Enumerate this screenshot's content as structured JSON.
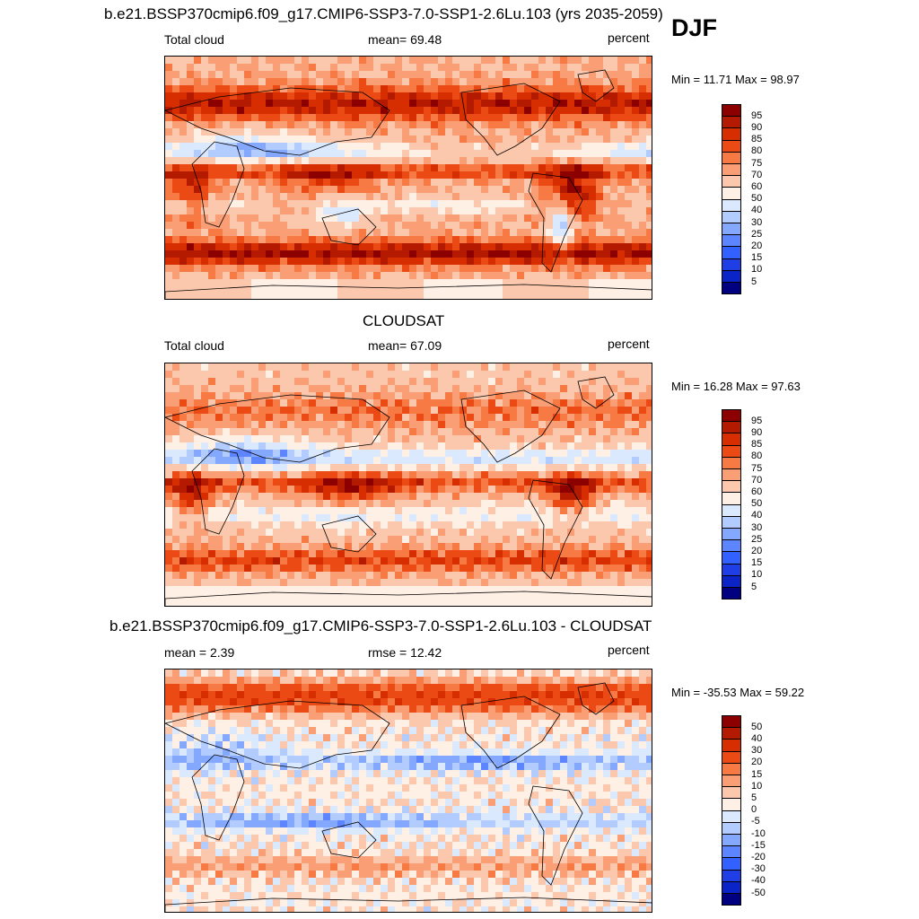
{
  "season": "DJF",
  "panels": [
    {
      "title": "b.e21.BSSP370cmip6.f09_g17.CMIP6-SSP3-7.0-SSP1-2.6Lu.103 (yrs 2035-2059)",
      "left_label": "Total cloud",
      "center_label": "mean=  69.48",
      "right_label": "percent",
      "minmax": "Min =  11.71 Max =  98.97",
      "field": "model"
    },
    {
      "title": "CLOUDSAT",
      "left_label": "Total cloud",
      "center_label": "mean=  67.09",
      "right_label": "percent",
      "minmax": "Min =  16.28 Max =  97.63",
      "field": "obs"
    },
    {
      "title": "b.e21.BSSP370cmip6.f09_g17.CMIP6-SSP3-7.0-SSP1-2.6Lu.103 - CLOUDSAT",
      "left_label": "mean =   2.39",
      "center_label": "rmse =  12.42",
      "right_label": "percent",
      "minmax": "Min = -35.53 Max =  59.22",
      "field": "diff"
    }
  ],
  "colorbars": {
    "abs": {
      "labels": [
        "95",
        "90",
        "85",
        "80",
        "75",
        "70",
        "60",
        "50",
        "40",
        "30",
        "25",
        "20",
        "15",
        "10",
        "5"
      ],
      "colors": [
        "#8c0000",
        "#b31a00",
        "#d62e00",
        "#eb4a14",
        "#f77a45",
        "#fa9e75",
        "#fcc8ad",
        "#fff0e6",
        "#dbe9ff",
        "#b3ccff",
        "#85a8ff",
        "#5c85ff",
        "#3361ff",
        "#1f3ee6",
        "#0a24c7",
        "#000080"
      ]
    },
    "diff": {
      "labels": [
        "50",
        "40",
        "30",
        "20",
        "15",
        "10",
        "5",
        "0",
        "-5",
        "-10",
        "-15",
        "-20",
        "-30",
        "-40",
        "-50"
      ],
      "colors": [
        "#8c0000",
        "#b31a00",
        "#d62e00",
        "#eb4a14",
        "#f77a45",
        "#fa9e75",
        "#fcc8ad",
        "#fff0e6",
        "#dbe9ff",
        "#b3ccff",
        "#85a8ff",
        "#5c85ff",
        "#3361ff",
        "#1f3ee6",
        "#0a24c7",
        "#000080"
      ]
    }
  }
}
